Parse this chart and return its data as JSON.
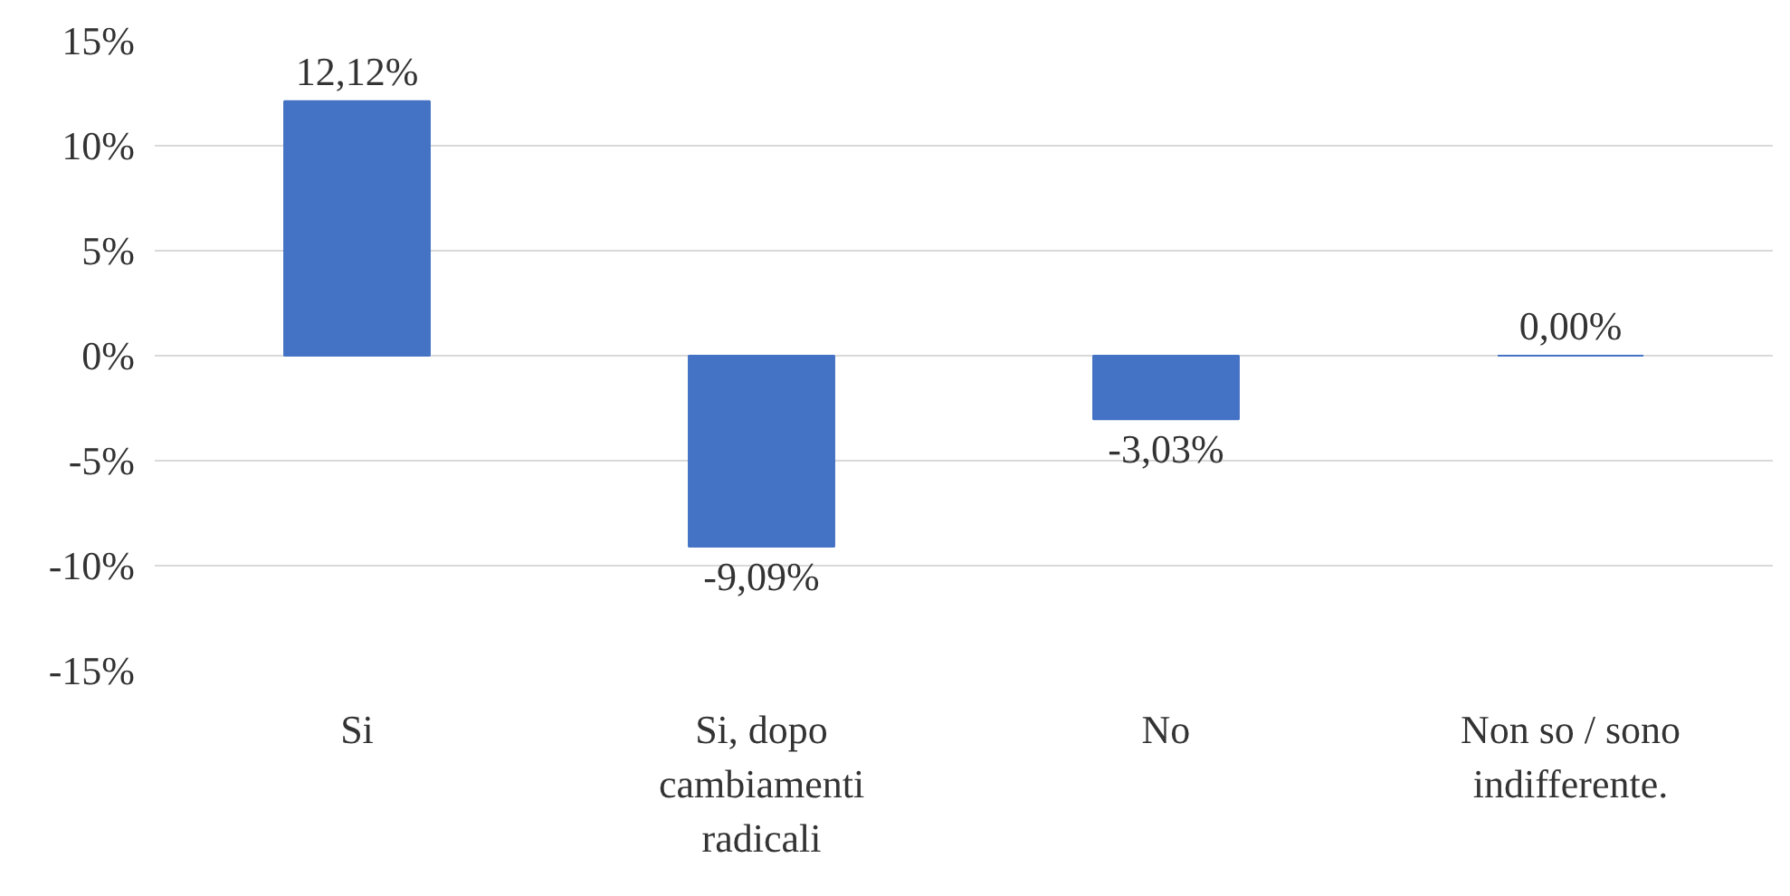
{
  "chart_data": {
    "type": "bar",
    "categories": [
      "Si",
      "Si, dopo\ncambiamenti\nradicali",
      "No",
      "Non so / sono\nindifferente."
    ],
    "values": [
      12.12,
      -9.09,
      -3.03,
      0
    ],
    "value_labels": [
      "12,12%",
      "-9,09%",
      "-3,03%",
      "0,00%"
    ],
    "color": "#4472c4",
    "ylim": [
      -15,
      15
    ],
    "yticks": [
      {
        "value": -15,
        "label": "-15%"
      },
      {
        "value": -10,
        "label": "-10%"
      },
      {
        "value": -5,
        "label": "-5%"
      },
      {
        "value": 0,
        "label": "0%"
      },
      {
        "value": 5,
        "label": "5%"
      },
      {
        "value": 10,
        "label": "10%"
      },
      {
        "value": 15,
        "label": "15%"
      }
    ],
    "grid": "y"
  }
}
